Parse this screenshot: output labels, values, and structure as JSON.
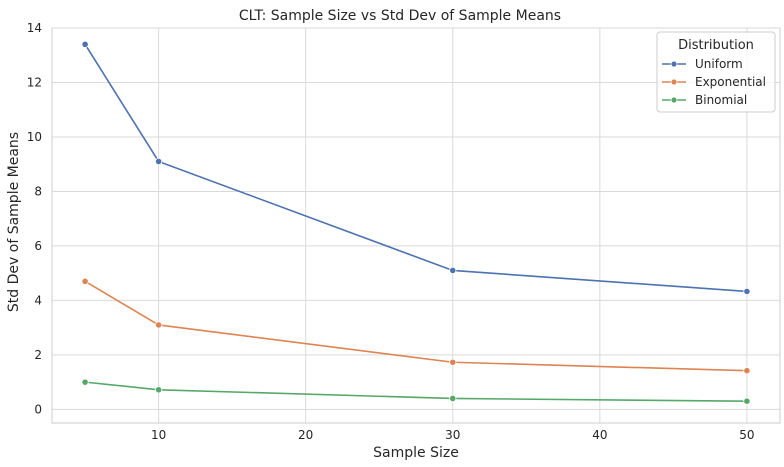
{
  "chart_data": {
    "type": "line",
    "title": "CLT: Sample Size vs Std Dev of Sample Means",
    "xlabel": "Sample Size",
    "ylabel": "Std Dev of Sample Means",
    "x": [
      5,
      10,
      30,
      50
    ],
    "xlim": [
      2.75,
      52.25
    ],
    "ylim": [
      -0.5,
      14.0
    ],
    "xticks": [
      10,
      20,
      30,
      40,
      50
    ],
    "yticks": [
      0,
      2,
      4,
      6,
      8,
      10,
      12,
      14
    ],
    "grid": true,
    "legend": {
      "title": "Distribution",
      "placement": "top-right"
    },
    "series": [
      {
        "name": "Uniform",
        "color": "#4c72b0",
        "values": [
          13.4,
          9.1,
          5.1,
          4.33
        ]
      },
      {
        "name": "Exponential",
        "color": "#dd8452",
        "values": [
          4.7,
          3.1,
          1.73,
          1.42
        ]
      },
      {
        "name": "Binomial",
        "color": "#55a868",
        "values": [
          1.0,
          0.72,
          0.4,
          0.3
        ]
      }
    ]
  }
}
